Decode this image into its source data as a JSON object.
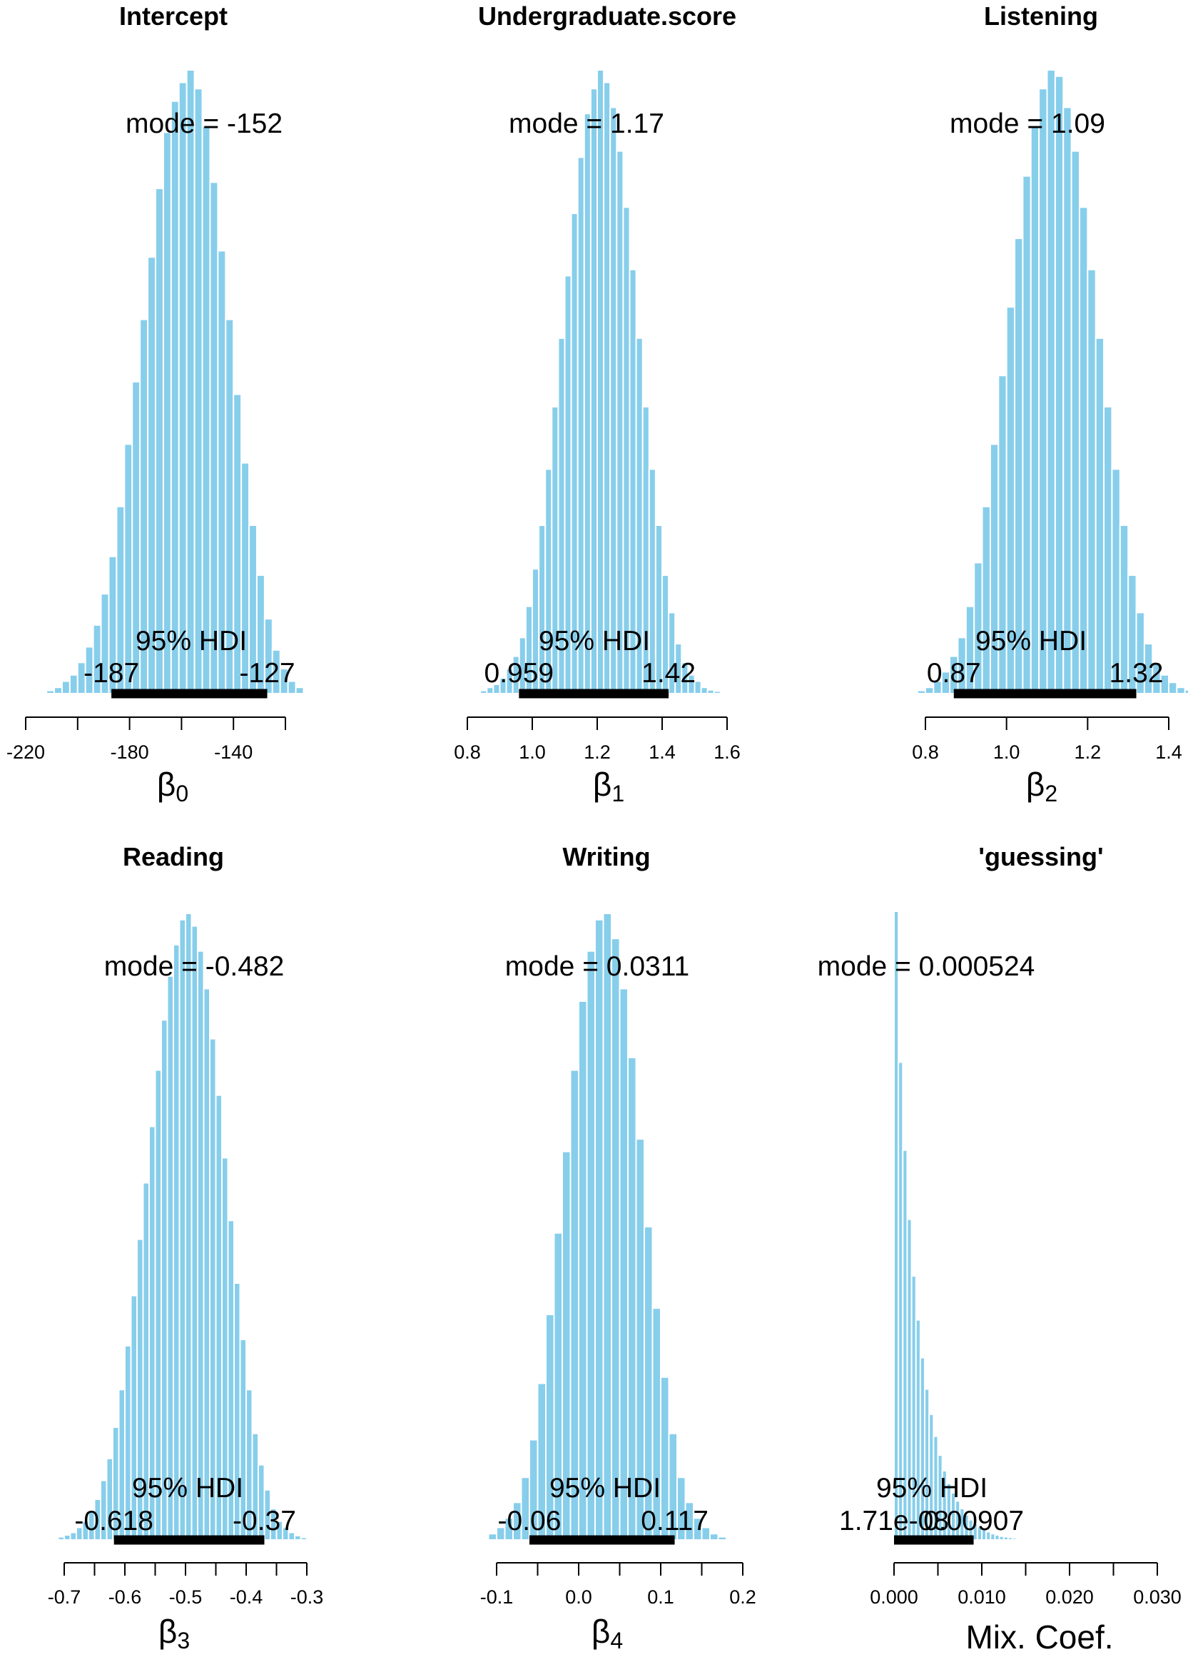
{
  "chart_data": [
    {
      "type": "histogram",
      "title": "Intercept",
      "xlabel": "β",
      "xlabel_sub": "0",
      "mode_text": "mode = -152",
      "hdi_label": "95% HDI",
      "hdi": [
        -187,
        -127
      ],
      "hdi_low_text": "-187",
      "hdi_high_text": "-127",
      "xlim": [
        -220,
        -113
      ],
      "ticks": [
        -220,
        -200,
        -180,
        -160,
        -140,
        -120
      ],
      "tick_labels": [
        "-220",
        "",
        "-180",
        "",
        "-140",
        ""
      ],
      "bin_edges": [
        -212,
        -209,
        -206,
        -203,
        -200,
        -197,
        -194,
        -191,
        -188,
        -185,
        -182,
        -179,
        -176,
        -173,
        -170,
        -167,
        -164,
        -161,
        -158,
        -155,
        -152,
        -149,
        -146,
        -143,
        -140,
        -137,
        -134,
        -131,
        -128,
        -125,
        -122,
        -119,
        -116,
        -113
      ],
      "heights": [
        0.005,
        0.01,
        0.02,
        0.03,
        0.05,
        0.075,
        0.11,
        0.16,
        0.22,
        0.3,
        0.4,
        0.5,
        0.6,
        0.7,
        0.81,
        0.9,
        0.95,
        0.98,
        1.0,
        0.97,
        0.91,
        0.82,
        0.71,
        0.6,
        0.48,
        0.37,
        0.27,
        0.19,
        0.12,
        0.07,
        0.04,
        0.02,
        0.01
      ]
    },
    {
      "type": "histogram",
      "title": "Undergraduate.score",
      "xlabel": "β",
      "xlabel_sub": "1",
      "mode_text": "mode = 1.17",
      "hdi_label": "95% HDI",
      "hdi": [
        0.959,
        1.42
      ],
      "hdi_low_text": "0.959",
      "hdi_high_text": "1.42",
      "xlim": [
        0.8,
        1.62
      ],
      "ticks": [
        0.8,
        1.0,
        1.2,
        1.4,
        1.6
      ],
      "tick_labels": [
        "0.8",
        "1.0",
        "1.2",
        "1.4",
        "1.6"
      ],
      "bin_edges": [
        0.84,
        0.86,
        0.88,
        0.9,
        0.92,
        0.94,
        0.96,
        0.98,
        1.0,
        1.02,
        1.04,
        1.06,
        1.08,
        1.1,
        1.12,
        1.14,
        1.16,
        1.18,
        1.2,
        1.22,
        1.24,
        1.26,
        1.28,
        1.3,
        1.32,
        1.34,
        1.36,
        1.38,
        1.4,
        1.42,
        1.44,
        1.46,
        1.48,
        1.5,
        1.52,
        1.54,
        1.56,
        1.58,
        1.6
      ],
      "heights": [
        0.005,
        0.01,
        0.015,
        0.025,
        0.04,
        0.06,
        0.09,
        0.14,
        0.2,
        0.27,
        0.36,
        0.46,
        0.57,
        0.67,
        0.77,
        0.86,
        0.93,
        0.97,
        1.0,
        0.98,
        0.94,
        0.87,
        0.78,
        0.68,
        0.57,
        0.46,
        0.36,
        0.27,
        0.19,
        0.13,
        0.08,
        0.05,
        0.03,
        0.02,
        0.01,
        0.006,
        0.004,
        0.002
      ]
    },
    {
      "type": "histogram",
      "title": "Listening",
      "xlabel": "β",
      "xlabel_sub": "2",
      "mode_text": "mode = 1.09",
      "hdi_label": "95% HDI",
      "hdi": [
        0.87,
        1.32
      ],
      "hdi_low_text": "0.87",
      "hdi_high_text": "1.32",
      "xlim": [
        0.8,
        1.48
      ],
      "ticks": [
        0.8,
        1.0,
        1.2,
        1.4
      ],
      "tick_labels": [
        "0.8",
        "1.0",
        "1.2",
        "1.4"
      ],
      "bin_edges": [
        0.78,
        0.8,
        0.82,
        0.84,
        0.86,
        0.88,
        0.9,
        0.92,
        0.94,
        0.96,
        0.98,
        1.0,
        1.02,
        1.04,
        1.06,
        1.08,
        1.1,
        1.12,
        1.14,
        1.16,
        1.18,
        1.2,
        1.22,
        1.24,
        1.26,
        1.28,
        1.3,
        1.32,
        1.34,
        1.36,
        1.38,
        1.4,
        1.42,
        1.44,
        1.46,
        1.48
      ],
      "heights": [
        0.005,
        0.01,
        0.02,
        0.035,
        0.06,
        0.09,
        0.14,
        0.21,
        0.3,
        0.4,
        0.51,
        0.62,
        0.73,
        0.83,
        0.91,
        0.97,
        1.0,
        0.99,
        0.94,
        0.87,
        0.78,
        0.68,
        0.57,
        0.46,
        0.36,
        0.27,
        0.19,
        0.13,
        0.08,
        0.05,
        0.03,
        0.018,
        0.01,
        0.006,
        0.003
      ]
    },
    {
      "type": "histogram",
      "title": "Reading",
      "xlabel": "β",
      "xlabel_sub": "3",
      "mode_text": "mode = -0.482",
      "hdi_label": "95% HDI",
      "hdi": [
        -0.618,
        -0.37
      ],
      "hdi_low_text": "-0.618",
      "hdi_high_text": "-0.37",
      "xlim": [
        -0.72,
        -0.29
      ],
      "ticks": [
        -0.7,
        -0.65,
        -0.6,
        -0.55,
        -0.5,
        -0.45,
        -0.4,
        -0.35,
        -0.3
      ],
      "tick_labels": [
        "-0.7",
        "",
        "-0.6",
        "",
        "-0.5",
        "",
        "-0.4",
        "",
        "-0.3"
      ],
      "bin_edges": [
        -0.71,
        -0.7,
        -0.69,
        -0.68,
        -0.67,
        -0.66,
        -0.65,
        -0.64,
        -0.63,
        -0.62,
        -0.61,
        -0.6,
        -0.59,
        -0.58,
        -0.57,
        -0.56,
        -0.55,
        -0.54,
        -0.53,
        -0.52,
        -0.51,
        -0.5,
        -0.49,
        -0.48,
        -0.47,
        -0.46,
        -0.45,
        -0.44,
        -0.43,
        -0.42,
        -0.41,
        -0.4,
        -0.39,
        -0.38,
        -0.37,
        -0.36,
        -0.35,
        -0.34,
        -0.33,
        -0.32,
        -0.31,
        -0.3
      ],
      "heights": [
        0.005,
        0.008,
        0.012,
        0.02,
        0.03,
        0.045,
        0.065,
        0.095,
        0.13,
        0.18,
        0.24,
        0.31,
        0.39,
        0.48,
        0.57,
        0.66,
        0.75,
        0.83,
        0.9,
        0.95,
        0.99,
        1.0,
        0.98,
        0.94,
        0.88,
        0.8,
        0.71,
        0.61,
        0.51,
        0.41,
        0.32,
        0.24,
        0.17,
        0.12,
        0.08,
        0.05,
        0.03,
        0.02,
        0.012,
        0.007,
        0.004
      ]
    },
    {
      "type": "histogram",
      "title": "Writing",
      "xlabel": "β",
      "xlabel_sub": "4",
      "mode_text": "mode = 0.0311",
      "hdi_label": "95% HDI",
      "hdi": [
        -0.06,
        0.117
      ],
      "hdi_low_text": "-0.06",
      "hdi_high_text": "0.117",
      "xlim": [
        -0.12,
        0.2
      ],
      "ticks": [
        -0.1,
        -0.05,
        0.0,
        0.05,
        0.1,
        0.15,
        0.2
      ],
      "tick_labels": [
        "-0.1",
        "",
        "0.0",
        "",
        "0.1",
        "",
        "0.2"
      ],
      "bin_edges": [
        -0.11,
        -0.1,
        -0.09,
        -0.08,
        -0.07,
        -0.06,
        -0.05,
        -0.04,
        -0.03,
        -0.02,
        -0.01,
        0.0,
        0.01,
        0.02,
        0.03,
        0.04,
        0.05,
        0.06,
        0.07,
        0.08,
        0.09,
        0.1,
        0.11,
        0.12,
        0.13,
        0.14,
        0.15,
        0.16,
        0.17,
        0.18
      ],
      "heights": [
        0.01,
        0.02,
        0.035,
        0.06,
        0.1,
        0.16,
        0.25,
        0.36,
        0.49,
        0.62,
        0.75,
        0.86,
        0.94,
        0.99,
        1.0,
        0.96,
        0.88,
        0.77,
        0.64,
        0.5,
        0.37,
        0.26,
        0.17,
        0.1,
        0.06,
        0.035,
        0.02,
        0.01,
        0.005
      ]
    },
    {
      "type": "histogram",
      "title": "'guessing'",
      "xlabel": "Mix. Coef.",
      "xlabel_sub": "",
      "mode_text": "mode = 0.000524",
      "hdi_label": "95% HDI",
      "hdi": [
        1.71e-08,
        0.00907
      ],
      "hdi_low_text": "1.71e-08",
      "hdi_high_text": "0.00907",
      "xlim": [
        0.0,
        0.03
      ],
      "ticks": [
        0.0,
        0.005,
        0.01,
        0.015,
        0.02,
        0.025,
        0.03
      ],
      "tick_labels": [
        "0.000",
        "",
        "0.010",
        "",
        "0.020",
        "",
        "0.030"
      ],
      "bin_edges": [
        0.0,
        0.0005,
        0.001,
        0.0015,
        0.002,
        0.0025,
        0.003,
        0.0035,
        0.004,
        0.0045,
        0.005,
        0.0055,
        0.006,
        0.0065,
        0.007,
        0.0075,
        0.008,
        0.0085,
        0.009,
        0.0095,
        0.01,
        0.0105,
        0.011,
        0.0115,
        0.012,
        0.0125,
        0.013,
        0.0135,
        0.014,
        0.0145,
        0.015,
        0.0155,
        0.016,
        0.0165,
        0.017
      ],
      "heights": [
        1.0,
        0.76,
        0.62,
        0.51,
        0.42,
        0.35,
        0.29,
        0.24,
        0.2,
        0.165,
        0.135,
        0.11,
        0.09,
        0.075,
        0.062,
        0.05,
        0.04,
        0.032,
        0.026,
        0.021,
        0.017,
        0.013,
        0.01,
        0.008,
        0.006,
        0.005,
        0.004,
        0.003,
        0.002,
        0.0015,
        0.001,
        0.001,
        0.0008,
        0.0005
      ]
    }
  ]
}
